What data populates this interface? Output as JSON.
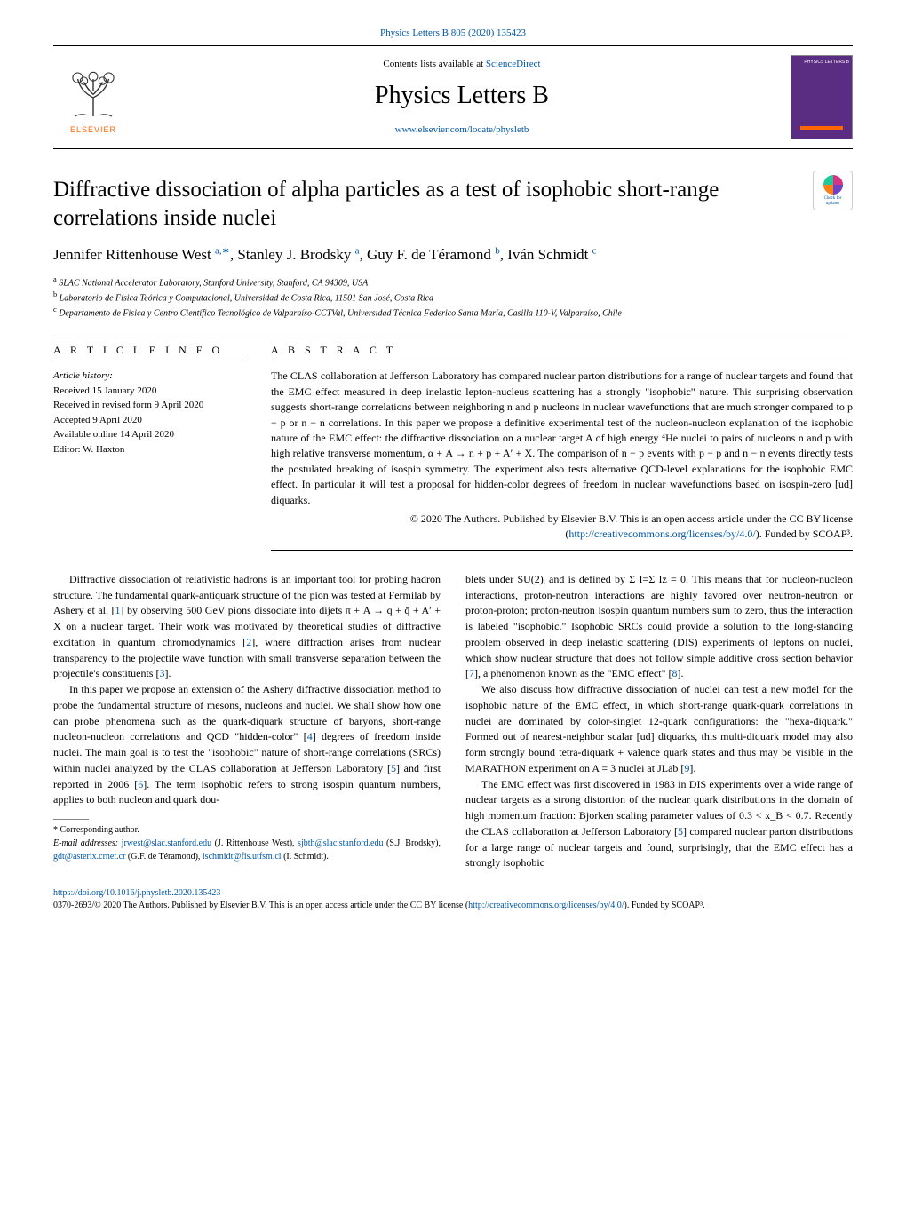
{
  "top": {
    "citation": "Physics Letters B 805 (2020) 135423",
    "citation_link_text": "Physics Letters B 805 (2020) 135423"
  },
  "header": {
    "contents_prefix": "Contents lists available at ",
    "contents_link": "ScienceDirect",
    "journal_name": "Physics Letters B",
    "homepage_link": "www.elsevier.com/locate/physletb",
    "elsevier_label": "ELSEVIER",
    "cover_label": "PHYSICS LETTERS B"
  },
  "check_updates": {
    "line1": "Check for",
    "line2": "updates"
  },
  "title": "Diffractive dissociation of alpha particles as a test of isophobic short-range correlations inside nuclei",
  "authors_html": "Jennifer Rittenhouse West <sup>a,∗</sup>, Stanley J. Brodsky <sup>a</sup>, Guy F. de Téramond <sup>b</sup>, Iván Schmidt <sup>c</sup>",
  "affiliations": {
    "a": "SLAC National Accelerator Laboratory, Stanford University, Stanford, CA 94309, USA",
    "b": "Laboratorio de Física Teórica y Computacional, Universidad de Costa Rica, 11501 San José, Costa Rica",
    "c": "Departamento de Física y Centro Científico Tecnológico de Valparaíso-CCTVal, Universidad Técnica Federico Santa María, Casilla 110-V, Valparaíso, Chile"
  },
  "info": {
    "section_label": "A R T I C L E   I N F O",
    "history_label": "Article history:",
    "received": "Received 15 January 2020",
    "revised": "Received in revised form 9 April 2020",
    "accepted": "Accepted 9 April 2020",
    "online": "Available online 14 April 2020",
    "editor": "Editor: W. Haxton"
  },
  "abstract": {
    "section_label": "A B S T R A C T",
    "text": "The CLAS collaboration at Jefferson Laboratory has compared nuclear parton distributions for a range of nuclear targets and found that the EMC effect measured in deep inelastic lepton-nucleus scattering has a strongly \"isophobic\" nature. This surprising observation suggests short-range correlations between neighboring n and p nucleons in nuclear wavefunctions that are much stronger compared to p − p or n − n correlations. In this paper we propose a definitive experimental test of the nucleon-nucleon explanation of the isophobic nature of the EMC effect: the diffractive dissociation on a nuclear target A of high energy ⁴He nuclei to pairs of nucleons n and p with high relative transverse momentum, α + A → n + p + A′ + X. The comparison of n − p events with p − p and n − n events directly tests the postulated breaking of isospin symmetry. The experiment also tests alternative QCD-level explanations for the isophobic EMC effect. In particular it will test a proposal for hidden-color degrees of freedom in nuclear wavefunctions based on isospin-zero [ud] diquarks.",
    "license_prefix": "© 2020 The Authors. Published by Elsevier B.V. This is an open access article under the CC BY license (",
    "license_link": "http://creativecommons.org/licenses/by/4.0/",
    "license_suffix": "). Funded by SCOAP³."
  },
  "body": {
    "p1": "Diffractive dissociation of relativistic hadrons is an important tool for probing hadron structure. The fundamental quark-antiquark structure of the pion was tested at Fermilab by Ashery et al. [1] by observing 500 GeV pions dissociate into dijets π + A → q + q̄ + A′ + X on a nuclear target. Their work was motivated by theoretical studies of diffractive excitation in quantum chromodynamics [2], where diffraction arises from nuclear transparency to the projectile wave function with small transverse separation between the projectile's constituents [3].",
    "p2": "In this paper we propose an extension of the Ashery diffractive dissociation method to probe the fundamental structure of mesons, nucleons and nuclei. We shall show how one can probe phenomena such as the quark-diquark structure of baryons, short-range nucleon-nucleon correlations and QCD \"hidden-color\" [4] degrees of freedom inside nuclei. The main goal is to test the \"isophobic\" nature of short-range correlations (SRCs) within nuclei analyzed by the CLAS collaboration at Jefferson Laboratory [5] and first reported in 2006 [6]. The term isophobic refers to strong isospin quantum numbers, applies to both nucleon and quark dou-",
    "p3": "blets under SU(2)ᵢ and is defined by Σ I=Σ Iz = 0. This means that for nucleon-nucleon interactions, proton-neutron interactions are highly favored over neutron-neutron or proton-proton; proton-neutron isospin quantum numbers sum to zero, thus the interaction is labeled \"isophobic.\" Isophobic SRCs could provide a solution to the long-standing problem observed in deep inelastic scattering (DIS) experiments of leptons on nuclei, which show nuclear structure that does not follow simple additive cross section behavior [7], a phenomenon known as the \"EMC effect\" [8].",
    "p4": "We also discuss how diffractive dissociation of nuclei can test a new model for the isophobic nature of the EMC effect, in which short-range quark-quark correlations in nuclei are dominated by color-singlet 12-quark configurations: the \"hexa-diquark.\" Formed out of nearest-neighbor scalar [ud] diquarks, this multi-diquark model may also form strongly bound tetra-diquark + valence quark states and thus may be visible in the MARATHON experiment on A = 3 nuclei at JLab [9].",
    "p5": "The EMC effect was first discovered in 1983 in DIS experiments over a wide range of nuclear targets as a strong distortion of the nuclear quark distributions in the domain of high momentum fraction: Bjorken scaling parameter values of 0.3 < x_B < 0.7. Recently the CLAS collaboration at Jefferson Laboratory [5] compared nuclear parton distributions for a large range of nuclear targets and found, surprisingly, that the EMC effect has a strongly isophobic"
  },
  "corresponding": {
    "star": "* Corresponding author.",
    "emails_label": "E-mail addresses:",
    "e1": "jrwest@slac.stanford.edu",
    "e1_who": " (J. Rittenhouse West), ",
    "e2": "sjbth@slac.stanford.edu",
    "e2_who": " (S.J. Brodsky), ",
    "e3": "gdt@asterix.crnet.cr",
    "e3_who": " (G.F. de Téramond), ",
    "e4": "ischmidt@fis.utfsm.cl",
    "e4_who": " (I. Schmidt)."
  },
  "footer": {
    "doi": "https://doi.org/10.1016/j.physletb.2020.135423",
    "copyright": "0370-2693/© 2020 The Authors. Published by Elsevier B.V. This is an open access article under the CC BY license (",
    "cc_link": "http://creativecommons.org/licenses/by/4.0/",
    "tail": "). Funded by SCOAP³."
  },
  "ref_links": [
    "1",
    "2",
    "3",
    "4",
    "5",
    "6",
    "7",
    "8",
    "9"
  ],
  "colors": {
    "link": "#0056a3",
    "elsevier_orange": "#ff6600",
    "cover_purple": "#5a2d82"
  }
}
